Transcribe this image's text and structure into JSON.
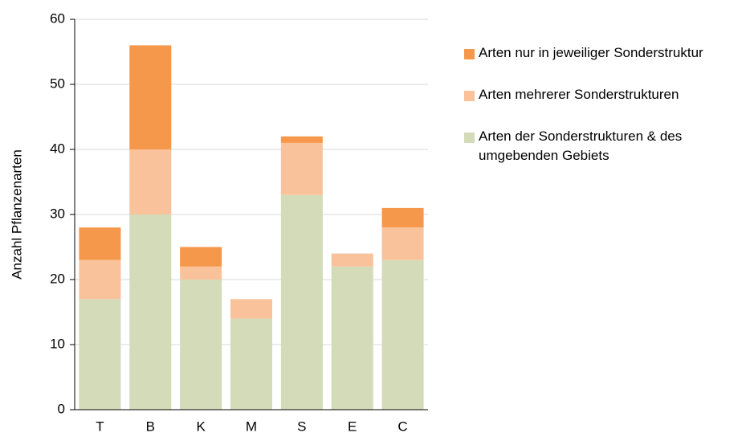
{
  "chart_data": {
    "type": "stacked-bar",
    "y_label": "Anzahl Pflanzenarten",
    "categories": [
      "T",
      "B",
      "K",
      "M",
      "S",
      "E",
      "C"
    ],
    "series": [
      {
        "name": "Arten der Sonderstrukturen & des umgebenden Gebiets",
        "color": "#d3dbb8",
        "values": [
          17,
          30,
          20,
          14,
          33,
          22,
          23
        ]
      },
      {
        "name": "Arten mehrerer Sonderstrukturen",
        "color": "#f9c29b",
        "values": [
          6,
          10,
          2,
          3,
          8,
          2,
          5
        ]
      },
      {
        "name": "Arten nur in jeweiliger Sonderstruktur",
        "color": "#f5984b",
        "values": [
          5,
          16,
          3,
          0,
          1,
          0,
          3
        ]
      }
    ],
    "ylim": [
      0,
      60
    ],
    "yticks": [
      0,
      10,
      20,
      30,
      40,
      50,
      60
    ],
    "grid": true,
    "legend": "right"
  }
}
